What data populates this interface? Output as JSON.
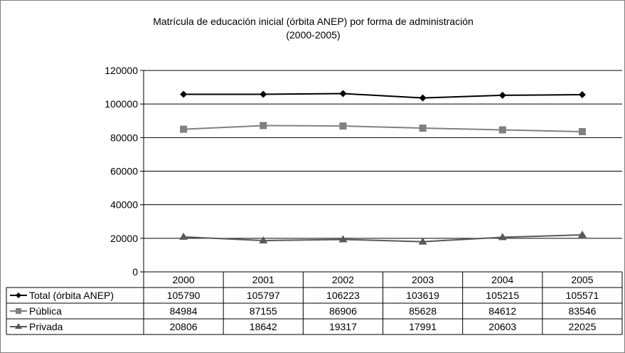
{
  "chart_data": {
    "type": "line",
    "title": "Matrícula de educación inicial (órbita ANEP) por forma de administración",
    "subtitle": "(2000-2005)",
    "categories": [
      "2000",
      "2001",
      "2002",
      "2003",
      "2004",
      "2005"
    ],
    "ylim": [
      0,
      120000
    ],
    "yticks": [
      "0",
      "20000",
      "40000",
      "60000",
      "80000",
      "100000",
      "120000"
    ],
    "grid": true,
    "legend": "data-table-left",
    "series": [
      {
        "name": "Total (órbita ANEP)",
        "values": [
          105790,
          105797,
          106223,
          103619,
          105215,
          105571
        ],
        "color": "#000000",
        "marker": "diamond"
      },
      {
        "name": "Pública",
        "values": [
          84984,
          87155,
          86906,
          85628,
          84612,
          83546
        ],
        "color": "#808080",
        "marker": "square"
      },
      {
        "name": "Privada",
        "values": [
          20806,
          18642,
          19317,
          17991,
          20603,
          22025
        ],
        "color": "#595959",
        "marker": "triangle"
      }
    ]
  }
}
